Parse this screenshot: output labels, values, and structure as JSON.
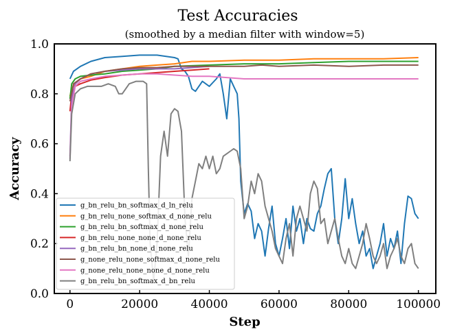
{
  "chart_data": {
    "type": "line",
    "title": "Test Accuracies",
    "subtitle": "(smoothed by a median filter with window=5)",
    "xlabel": "Step",
    "ylabel": "Accuracy",
    "xlim": [
      -4500,
      105000
    ],
    "ylim": [
      0.0,
      1.0
    ],
    "xticks": [
      0,
      20000,
      40000,
      60000,
      80000,
      100000
    ],
    "yticks": [
      0.0,
      0.2,
      0.4,
      0.6,
      0.8,
      1.0
    ],
    "grid": false,
    "legend_position": "lower-left",
    "series": [
      {
        "name": "g_bn_relu_bn_softmax_d_ln_relu",
        "color": "#1f77b4",
        "points": [
          [
            0,
            0.86
          ],
          [
            1000,
            0.89
          ],
          [
            3000,
            0.91
          ],
          [
            6000,
            0.93
          ],
          [
            10000,
            0.945
          ],
          [
            15000,
            0.95
          ],
          [
            20000,
            0.955
          ],
          [
            25000,
            0.955
          ],
          [
            30000,
            0.945
          ],
          [
            31000,
            0.94
          ],
          [
            32000,
            0.9
          ],
          [
            33000,
            0.89
          ],
          [
            34000,
            0.87
          ],
          [
            35000,
            0.82
          ],
          [
            36000,
            0.81
          ],
          [
            37000,
            0.83
          ],
          [
            38000,
            0.85
          ],
          [
            40000,
            0.83
          ],
          [
            42000,
            0.86
          ],
          [
            43000,
            0.88
          ],
          [
            44000,
            0.8
          ],
          [
            45000,
            0.7
          ],
          [
            46000,
            0.86
          ],
          [
            47000,
            0.83
          ],
          [
            48000,
            0.8
          ],
          [
            48500,
            0.7
          ],
          [
            49000,
            0.45
          ],
          [
            50000,
            0.32
          ],
          [
            51000,
            0.36
          ],
          [
            52000,
            0.33
          ],
          [
            53000,
            0.22
          ],
          [
            54000,
            0.28
          ],
          [
            55000,
            0.25
          ],
          [
            56000,
            0.15
          ],
          [
            57000,
            0.26
          ],
          [
            58000,
            0.35
          ],
          [
            59000,
            0.2
          ],
          [
            60000,
            0.15
          ],
          [
            61000,
            0.22
          ],
          [
            62000,
            0.3
          ],
          [
            63000,
            0.18
          ],
          [
            64000,
            0.35
          ],
          [
            65000,
            0.25
          ],
          [
            66000,
            0.3
          ],
          [
            67000,
            0.2
          ],
          [
            68000,
            0.3
          ],
          [
            69000,
            0.26
          ],
          [
            70000,
            0.25
          ],
          [
            71000,
            0.32
          ],
          [
            72000,
            0.35
          ],
          [
            73000,
            0.42
          ],
          [
            74000,
            0.48
          ],
          [
            75000,
            0.5
          ],
          [
            76000,
            0.3
          ],
          [
            77000,
            0.2
          ],
          [
            78000,
            0.3
          ],
          [
            79000,
            0.46
          ],
          [
            80000,
            0.3
          ],
          [
            81000,
            0.38
          ],
          [
            82000,
            0.28
          ],
          [
            83000,
            0.2
          ],
          [
            84000,
            0.25
          ],
          [
            85000,
            0.15
          ],
          [
            86000,
            0.18
          ],
          [
            87000,
            0.1
          ],
          [
            88000,
            0.15
          ],
          [
            89000,
            0.2
          ],
          [
            90000,
            0.28
          ],
          [
            91000,
            0.15
          ],
          [
            92000,
            0.22
          ],
          [
            93000,
            0.18
          ],
          [
            94000,
            0.25
          ],
          [
            95000,
            0.12
          ],
          [
            96000,
            0.28
          ],
          [
            97000,
            0.39
          ],
          [
            98000,
            0.38
          ],
          [
            99000,
            0.32
          ],
          [
            100000,
            0.3
          ]
        ]
      },
      {
        "name": "g_bn_relu_none_softmax_d_none_relu",
        "color": "#ff7f0e",
        "points": [
          [
            0,
            0.79
          ],
          [
            500,
            0.82
          ],
          [
            1500,
            0.84
          ],
          [
            3000,
            0.86
          ],
          [
            6000,
            0.87
          ],
          [
            10000,
            0.89
          ],
          [
            15000,
            0.9
          ],
          [
            20000,
            0.91
          ],
          [
            25000,
            0.915
          ],
          [
            30000,
            0.92
          ],
          [
            35000,
            0.93
          ],
          [
            40000,
            0.93
          ],
          [
            50000,
            0.935
          ],
          [
            60000,
            0.935
          ],
          [
            70000,
            0.94
          ],
          [
            80000,
            0.94
          ],
          [
            90000,
            0.94
          ],
          [
            100000,
            0.945
          ]
        ]
      },
      {
        "name": "g_bn_relu_bn_softmax_d_none_relu",
        "color": "#2ca02c",
        "points": [
          [
            0,
            0.78
          ],
          [
            500,
            0.84
          ],
          [
            1500,
            0.86
          ],
          [
            3000,
            0.87
          ],
          [
            6000,
            0.875
          ],
          [
            10000,
            0.88
          ],
          [
            15000,
            0.89
          ],
          [
            20000,
            0.895
          ],
          [
            25000,
            0.9
          ],
          [
            30000,
            0.91
          ],
          [
            40000,
            0.915
          ],
          [
            50000,
            0.92
          ],
          [
            60000,
            0.92
          ],
          [
            70000,
            0.925
          ],
          [
            80000,
            0.93
          ],
          [
            90000,
            0.93
          ],
          [
            100000,
            0.93
          ]
        ]
      },
      {
        "name": "g_bn_relu_none_none_d_none_relu",
        "color": "#d62728",
        "points": [
          [
            0,
            0.73
          ],
          [
            500,
            0.8
          ],
          [
            1500,
            0.83
          ],
          [
            3000,
            0.84
          ],
          [
            6000,
            0.855
          ],
          [
            10000,
            0.865
          ],
          [
            15000,
            0.875
          ],
          [
            20000,
            0.88
          ],
          [
            25000,
            0.885
          ],
          [
            30000,
            0.89
          ],
          [
            35000,
            0.895
          ],
          [
            40000,
            0.9
          ]
        ]
      },
      {
        "name": "g_bn_relu_bn_none_d_none_relu",
        "color": "#9467bd",
        "points": [
          [
            0,
            0.55
          ],
          [
            500,
            0.78
          ],
          [
            1500,
            0.84
          ],
          [
            3000,
            0.86
          ],
          [
            6000,
            0.88
          ],
          [
            10000,
            0.89
          ],
          [
            15000,
            0.895
          ],
          [
            20000,
            0.9
          ],
          [
            25000,
            0.9
          ],
          [
            30000,
            0.9
          ],
          [
            35000,
            0.905
          ],
          [
            40000,
            0.91
          ]
        ]
      },
      {
        "name": "g_none_relu_none_softmax_d_none_relu",
        "color": "#8c564b",
        "points": [
          [
            0,
            0.77
          ],
          [
            1000,
            0.84
          ],
          [
            3000,
            0.86
          ],
          [
            6000,
            0.88
          ],
          [
            10000,
            0.89
          ],
          [
            15000,
            0.9
          ],
          [
            20000,
            0.905
          ],
          [
            25000,
            0.905
          ],
          [
            30000,
            0.91
          ],
          [
            40000,
            0.91
          ],
          [
            50000,
            0.91
          ],
          [
            55000,
            0.915
          ],
          [
            60000,
            0.91
          ],
          [
            70000,
            0.915
          ],
          [
            80000,
            0.91
          ],
          [
            90000,
            0.915
          ],
          [
            100000,
            0.915
          ]
        ]
      },
      {
        "name": "g_none_relu_none_none_d_none_relu",
        "color": "#e377c2",
        "points": [
          [
            0,
            0.54
          ],
          [
            500,
            0.75
          ],
          [
            1500,
            0.83
          ],
          [
            3000,
            0.85
          ],
          [
            6000,
            0.86
          ],
          [
            10000,
            0.87
          ],
          [
            15000,
            0.875
          ],
          [
            20000,
            0.88
          ],
          [
            25000,
            0.88
          ],
          [
            30000,
            0.875
          ],
          [
            35000,
            0.87
          ],
          [
            40000,
            0.87
          ],
          [
            45000,
            0.865
          ],
          [
            50000,
            0.86
          ],
          [
            60000,
            0.86
          ],
          [
            70000,
            0.86
          ],
          [
            80000,
            0.86
          ],
          [
            90000,
            0.86
          ],
          [
            100000,
            0.86
          ]
        ]
      },
      {
        "name": "g_bn_relu_bn_softmax_d_bn_relu",
        "color": "#7f7f7f",
        "points": [
          [
            0,
            0.53
          ],
          [
            500,
            0.72
          ],
          [
            1500,
            0.8
          ],
          [
            3000,
            0.82
          ],
          [
            5000,
            0.83
          ],
          [
            7000,
            0.83
          ],
          [
            9000,
            0.83
          ],
          [
            11000,
            0.84
          ],
          [
            13000,
            0.83
          ],
          [
            14000,
            0.8
          ],
          [
            15000,
            0.8
          ],
          [
            17000,
            0.84
          ],
          [
            19000,
            0.85
          ],
          [
            21000,
            0.85
          ],
          [
            22000,
            0.84
          ],
          [
            22500,
            0.5
          ],
          [
            23000,
            0.2
          ],
          [
            24000,
            0.05
          ],
          [
            25000,
            0.2
          ],
          [
            26000,
            0.55
          ],
          [
            27000,
            0.65
          ],
          [
            28000,
            0.55
          ],
          [
            29000,
            0.72
          ],
          [
            30000,
            0.74
          ],
          [
            31000,
            0.73
          ],
          [
            32000,
            0.65
          ],
          [
            33000,
            0.3
          ],
          [
            34000,
            0.15
          ],
          [
            35000,
            0.38
          ],
          [
            36000,
            0.45
          ],
          [
            37000,
            0.52
          ],
          [
            38000,
            0.5
          ],
          [
            39000,
            0.55
          ],
          [
            40000,
            0.5
          ],
          [
            41000,
            0.55
          ],
          [
            42000,
            0.48
          ],
          [
            43000,
            0.5
          ],
          [
            44000,
            0.55
          ],
          [
            45000,
            0.56
          ],
          [
            46000,
            0.57
          ],
          [
            47000,
            0.58
          ],
          [
            48000,
            0.57
          ],
          [
            49000,
            0.5
          ],
          [
            50000,
            0.3
          ],
          [
            51000,
            0.35
          ],
          [
            52000,
            0.45
          ],
          [
            53000,
            0.4
          ],
          [
            54000,
            0.48
          ],
          [
            55000,
            0.45
          ],
          [
            56000,
            0.35
          ],
          [
            57000,
            0.3
          ],
          [
            58000,
            0.25
          ],
          [
            59000,
            0.18
          ],
          [
            60000,
            0.15
          ],
          [
            61000,
            0.12
          ],
          [
            62000,
            0.22
          ],
          [
            63000,
            0.28
          ],
          [
            64000,
            0.15
          ],
          [
            65000,
            0.3
          ],
          [
            66000,
            0.35
          ],
          [
            67000,
            0.3
          ],
          [
            68000,
            0.25
          ],
          [
            69000,
            0.4
          ],
          [
            70000,
            0.45
          ],
          [
            71000,
            0.42
          ],
          [
            72000,
            0.28
          ],
          [
            73000,
            0.3
          ],
          [
            74000,
            0.2
          ],
          [
            75000,
            0.25
          ],
          [
            76000,
            0.3
          ],
          [
            77000,
            0.22
          ],
          [
            78000,
            0.15
          ],
          [
            79000,
            0.12
          ],
          [
            80000,
            0.18
          ],
          [
            81000,
            0.12
          ],
          [
            82000,
            0.1
          ],
          [
            83000,
            0.15
          ],
          [
            84000,
            0.2
          ],
          [
            85000,
            0.28
          ],
          [
            86000,
            0.22
          ],
          [
            87000,
            0.15
          ],
          [
            88000,
            0.12
          ],
          [
            89000,
            0.15
          ],
          [
            90000,
            0.2
          ],
          [
            91000,
            0.1
          ],
          [
            92000,
            0.15
          ],
          [
            93000,
            0.18
          ],
          [
            94000,
            0.22
          ],
          [
            95000,
            0.15
          ],
          [
            96000,
            0.12
          ],
          [
            97000,
            0.18
          ],
          [
            98000,
            0.2
          ],
          [
            99000,
            0.12
          ],
          [
            100000,
            0.1
          ]
        ]
      }
    ]
  }
}
